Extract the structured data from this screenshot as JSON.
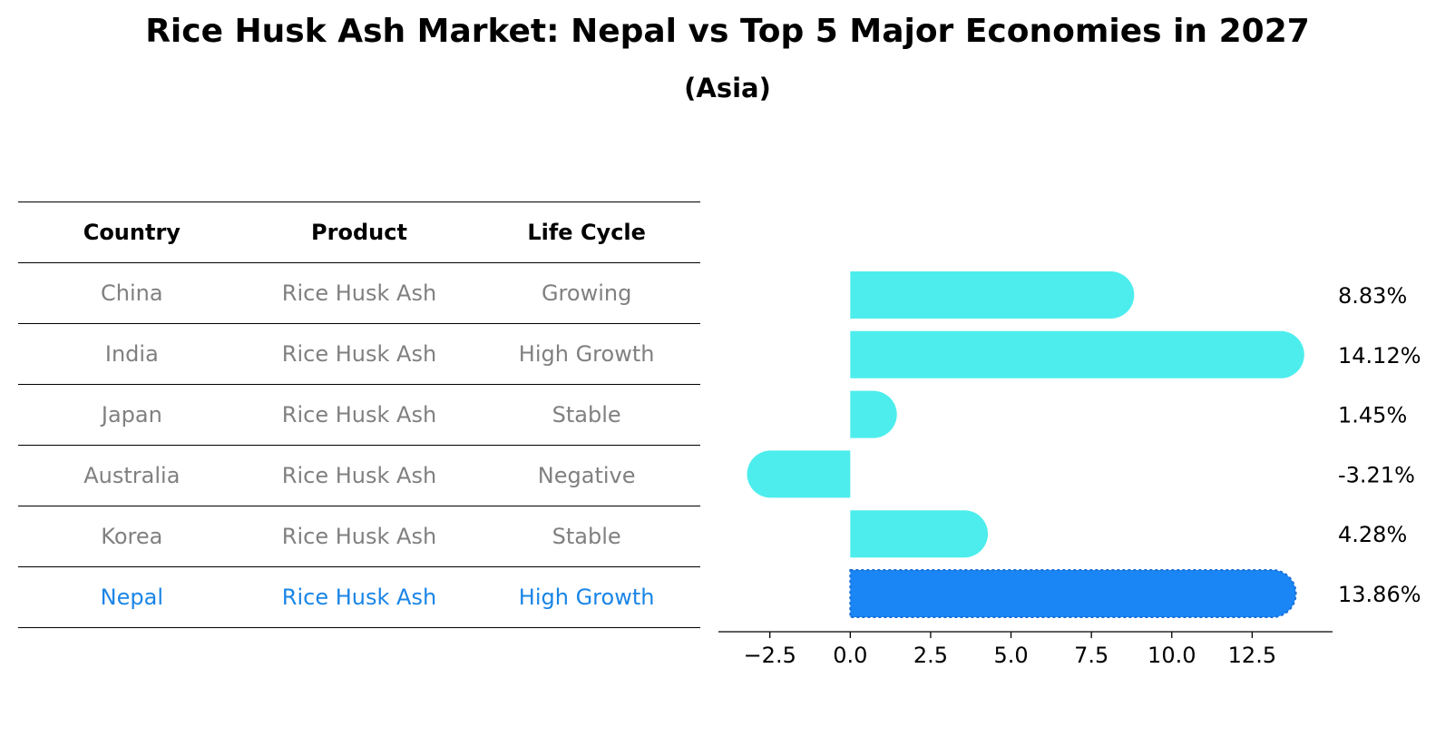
{
  "page": {
    "title": "Rice Husk Ash Market: Nepal vs Top 5 Major Economies in 2027",
    "subtitle": "(Asia)"
  },
  "table": {
    "headers": [
      "Country",
      "Product",
      "Life Cycle"
    ],
    "rows": [
      {
        "country": "China",
        "product": "Rice Husk Ash",
        "life_cycle": "Growing"
      },
      {
        "country": "India",
        "product": "Rice Husk Ash",
        "life_cycle": "High Growth"
      },
      {
        "country": "Japan",
        "product": "Rice Husk Ash",
        "life_cycle": "Stable"
      },
      {
        "country": "Australia",
        "product": "Rice Husk Ash",
        "life_cycle": "Negative"
      },
      {
        "country": "Korea",
        "product": "Rice Husk Ash",
        "life_cycle": "Stable"
      },
      {
        "country": "Nepal",
        "product": "Rice Husk Ash",
        "life_cycle": "High Growth"
      }
    ]
  },
  "chart_data": {
    "type": "bar",
    "orientation": "horizontal",
    "categories": [
      "China",
      "India",
      "Japan",
      "Australia",
      "Korea",
      "Nepal"
    ],
    "values": [
      8.83,
      14.12,
      1.45,
      -3.21,
      4.28,
      13.86
    ],
    "value_labels": [
      "8.83%",
      "14.12%",
      "1.45%",
      "-3.21%",
      "4.28%",
      "13.86%"
    ],
    "highlight": "Nepal",
    "xlim": [
      -4.1,
      15.0
    ],
    "xticks": [
      -2.5,
      0.0,
      2.5,
      5.0,
      7.5,
      10.0,
      12.5
    ],
    "xtick_labels": [
      "−2.5",
      "0.0",
      "2.5",
      "5.0",
      "7.5",
      "10.0",
      "12.5"
    ],
    "grid": false,
    "colors": {
      "bar": "#4deded",
      "highlight": "#1a85f5",
      "highlight_text": "#1a85e6",
      "muted_text": "#808080"
    }
  }
}
